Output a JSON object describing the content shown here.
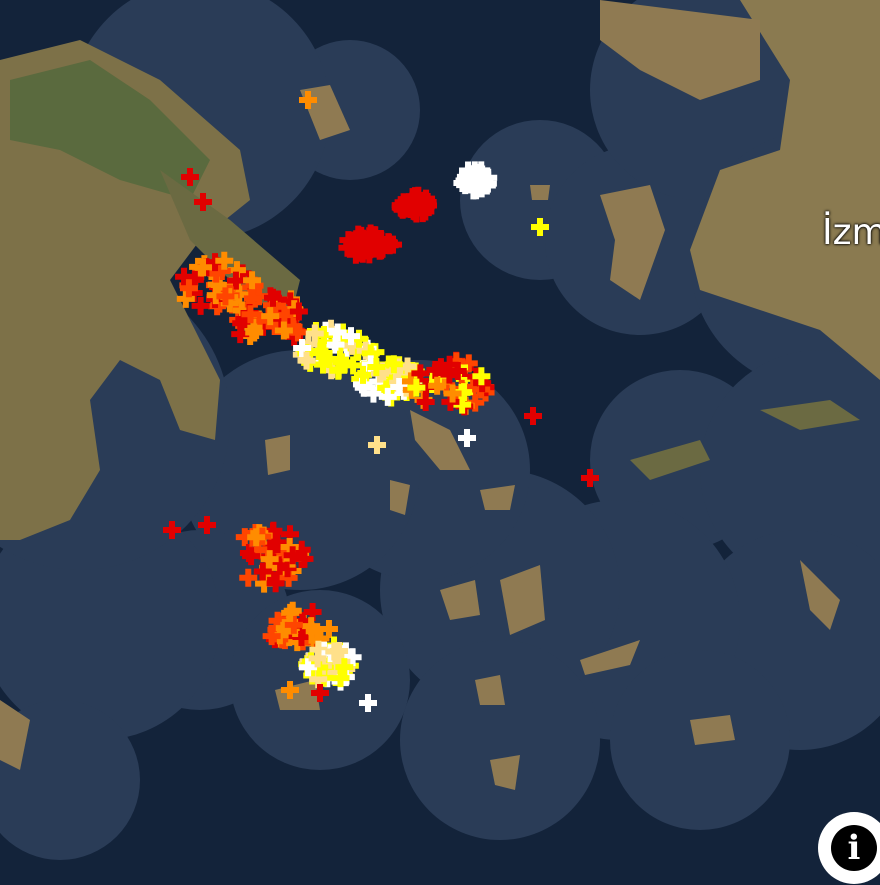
{
  "map": {
    "city_label": "İzm",
    "colors": {
      "deep_sea": "#13233a",
      "buffer_sea": "#2a3c57",
      "land_dry": "#8f7a52",
      "land_green": "#5a6a3e"
    },
    "strike_colors": [
      "#ffffff",
      "#ffff00",
      "#ffe08a",
      "#ff8c00",
      "#ff4500",
      "#e10000"
    ],
    "info_button": {
      "icon": "info-icon",
      "glyph": "i"
    }
  }
}
